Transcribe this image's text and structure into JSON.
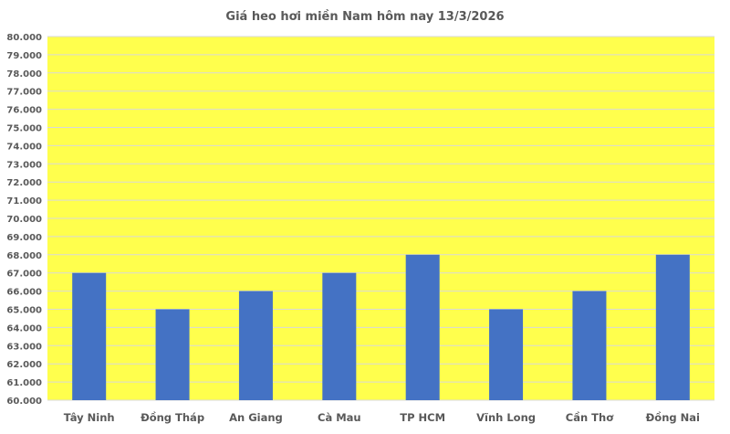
{
  "chart_data": {
    "type": "bar",
    "title": "Giá heo hơi miền Nam hôm nay 13/3/2026",
    "xlabel": "",
    "ylabel": "",
    "categories": [
      "Tây Ninh",
      "Đồng Tháp",
      "An Giang",
      "Cà Mau",
      "TP HCM",
      "Vĩnh Long",
      "Cần Thơ",
      "Đồng Nai"
    ],
    "values": [
      67000,
      65000,
      66000,
      67000,
      68000,
      65000,
      66000,
      68000
    ],
    "ylim": [
      60000,
      80000
    ],
    "ytick_step": 1000,
    "ytick_labels": [
      "60.000",
      "61.000",
      "62.000",
      "63.000",
      "64.000",
      "65.000",
      "66.000",
      "67.000",
      "68.000",
      "69.000",
      "70.000",
      "71.000",
      "72.000",
      "73.000",
      "74.000",
      "75.000",
      "76.000",
      "77.000",
      "78.000",
      "79.000",
      "80.000"
    ],
    "grid": true,
    "legend": "none",
    "colors": {
      "bar": "#4472C4",
      "plot_background": "#FFFF4D",
      "grid": "#D9D9D9"
    }
  }
}
